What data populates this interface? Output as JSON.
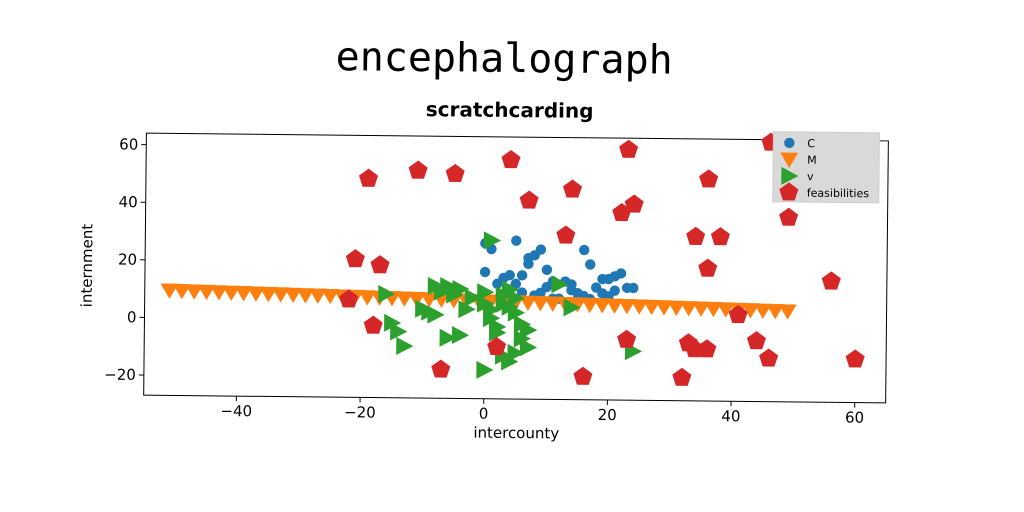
{
  "chart_data": {
    "type": "scatter",
    "title": "encephalograph",
    "subtitle": "scratchcarding",
    "xlabel": "intercounty",
    "ylabel": "internment",
    "xlim": [
      -55,
      65
    ],
    "ylim": [
      -27,
      64
    ],
    "xticks": [
      -40,
      -20,
      0,
      20,
      40,
      60
    ],
    "yticks": [
      -20,
      0,
      20,
      40,
      60
    ],
    "xtick_labels": [
      "−40",
      "−20",
      "0",
      "20",
      "40",
      "60"
    ],
    "ytick_labels": [
      "−20",
      "0",
      "20",
      "40",
      "60"
    ],
    "grid": false,
    "legend_position": "top-right",
    "series": [
      {
        "name": "C",
        "marker": "circle",
        "color": "#1f77b4",
        "points": [
          [
            0,
            27
          ],
          [
            1,
            25
          ],
          [
            5,
            28
          ],
          [
            7,
            22
          ],
          [
            8,
            23
          ],
          [
            9,
            25
          ],
          [
            10,
            18
          ],
          [
            11,
            14
          ],
          [
            4,
            16
          ],
          [
            6,
            16
          ],
          [
            0,
            17
          ],
          [
            7,
            20
          ],
          [
            2,
            13
          ],
          [
            4,
            11
          ],
          [
            6,
            10
          ],
          [
            8,
            9
          ],
          [
            9,
            10
          ],
          [
            11,
            8
          ],
          [
            12,
            8
          ],
          [
            14,
            11
          ],
          [
            15,
            10
          ],
          [
            16,
            9
          ],
          [
            17,
            8
          ],
          [
            18,
            12
          ],
          [
            19,
            15
          ],
          [
            20,
            15
          ],
          [
            21,
            16
          ],
          [
            22,
            17
          ],
          [
            20,
            9
          ],
          [
            21,
            11
          ],
          [
            23,
            12
          ],
          [
            24,
            12
          ],
          [
            19,
            10
          ],
          [
            16,
            25
          ],
          [
            17,
            20
          ],
          [
            14,
            13
          ],
          [
            15,
            8
          ],
          [
            10,
            12
          ],
          [
            13,
            14
          ],
          [
            5,
            13
          ],
          [
            3,
            15
          ]
        ]
      },
      {
        "name": "M",
        "marker": "triangle-down",
        "color": "#ff7f0e",
        "points": [
          [
            -51,
            9.5
          ],
          [
            -49,
            9.4
          ],
          [
            -47,
            9.3
          ],
          [
            -45,
            9.2
          ],
          [
            -43,
            9.1
          ],
          [
            -41,
            9.0
          ],
          [
            -39,
            8.9
          ],
          [
            -37,
            8.8
          ],
          [
            -35,
            8.7
          ],
          [
            -33,
            8.6
          ],
          [
            -31,
            8.5
          ],
          [
            -29,
            8.4
          ],
          [
            -27,
            8.3
          ],
          [
            -25,
            8.2
          ],
          [
            -23,
            8.1
          ],
          [
            -21,
            8.0
          ],
          [
            -19,
            7.9
          ],
          [
            -17,
            7.8
          ],
          [
            -15,
            7.7
          ],
          [
            -13,
            7.6
          ],
          [
            -11,
            7.5
          ],
          [
            -9,
            7.4
          ],
          [
            -7,
            7.3
          ],
          [
            -5,
            7.2
          ],
          [
            -3,
            7.1
          ],
          [
            -1,
            7.0
          ],
          [
            1,
            6.9
          ],
          [
            3,
            6.8
          ],
          [
            5,
            6.7
          ],
          [
            7,
            6.6
          ],
          [
            9,
            6.5
          ],
          [
            11,
            6.4
          ],
          [
            13,
            6.3
          ],
          [
            15,
            6.2
          ],
          [
            17,
            6.1
          ],
          [
            19,
            6.0
          ],
          [
            21,
            5.9
          ],
          [
            23,
            5.8
          ],
          [
            25,
            5.7
          ],
          [
            27,
            5.6
          ],
          [
            29,
            5.5
          ],
          [
            31,
            5.4
          ],
          [
            33,
            5.3
          ],
          [
            35,
            5.2
          ],
          [
            37,
            5.1
          ],
          [
            39,
            5.0
          ],
          [
            41,
            4.9
          ],
          [
            43,
            4.8
          ],
          [
            45,
            4.7
          ],
          [
            47,
            4.6
          ],
          [
            49,
            4.5
          ]
        ]
      },
      {
        "name": "v",
        "marker": "triangle-right",
        "color": "#2ca02c",
        "points": [
          [
            1,
            28
          ],
          [
            -16,
            9
          ],
          [
            -15,
            -1
          ],
          [
            -14,
            -4
          ],
          [
            -13,
            -9
          ],
          [
            -10,
            4
          ],
          [
            -8,
            12
          ],
          [
            -7,
            10
          ],
          [
            -6,
            12
          ],
          [
            -5,
            9
          ],
          [
            -4,
            11
          ],
          [
            -9,
            3
          ],
          [
            -8,
            2
          ],
          [
            -6,
            -6
          ],
          [
            -4,
            -5
          ],
          [
            -3,
            4
          ],
          [
            0,
            10
          ],
          [
            0,
            6
          ],
          [
            1,
            4
          ],
          [
            1,
            1
          ],
          [
            2,
            -2
          ],
          [
            3,
            9
          ],
          [
            3,
            6
          ],
          [
            4,
            11
          ],
          [
            5,
            8
          ],
          [
            5,
            3
          ],
          [
            6,
            -1
          ],
          [
            7,
            -3
          ],
          [
            7,
            -9
          ],
          [
            3,
            -12
          ],
          [
            0,
            -17
          ],
          [
            4,
            -14
          ],
          [
            5,
            -11
          ],
          [
            6,
            -6
          ],
          [
            14,
            5
          ],
          [
            12,
            13
          ],
          [
            24,
            -10
          ],
          [
            2,
            -4
          ],
          [
            4,
            5
          ],
          [
            -2,
            8
          ]
        ]
      },
      {
        "name": "feasibilities",
        "marker": "pentagon",
        "color": "#d62728",
        "points": [
          [
            -19,
            49
          ],
          [
            -11,
            52
          ],
          [
            -5,
            51
          ],
          [
            4,
            56
          ],
          [
            7,
            42
          ],
          [
            14,
            46
          ],
          [
            22,
            38
          ],
          [
            24,
            41
          ],
          [
            23,
            60
          ],
          [
            -21,
            21
          ],
          [
            -17,
            19
          ],
          [
            13,
            30
          ],
          [
            36,
            50
          ],
          [
            34,
            30
          ],
          [
            38,
            30
          ],
          [
            36,
            19
          ],
          [
            49,
            37
          ],
          [
            46,
            63
          ],
          [
            56,
            15
          ],
          [
            -22,
            7
          ],
          [
            -18,
            -2
          ],
          [
            -7,
            -17
          ],
          [
            2,
            -9
          ],
          [
            16,
            -19
          ],
          [
            23,
            -6
          ],
          [
            32,
            -19
          ],
          [
            33,
            -7
          ],
          [
            34,
            -9
          ],
          [
            36,
            -9
          ],
          [
            41,
            3
          ],
          [
            44,
            -6
          ],
          [
            46,
            -12
          ],
          [
            60,
            -12
          ]
        ]
      }
    ]
  }
}
